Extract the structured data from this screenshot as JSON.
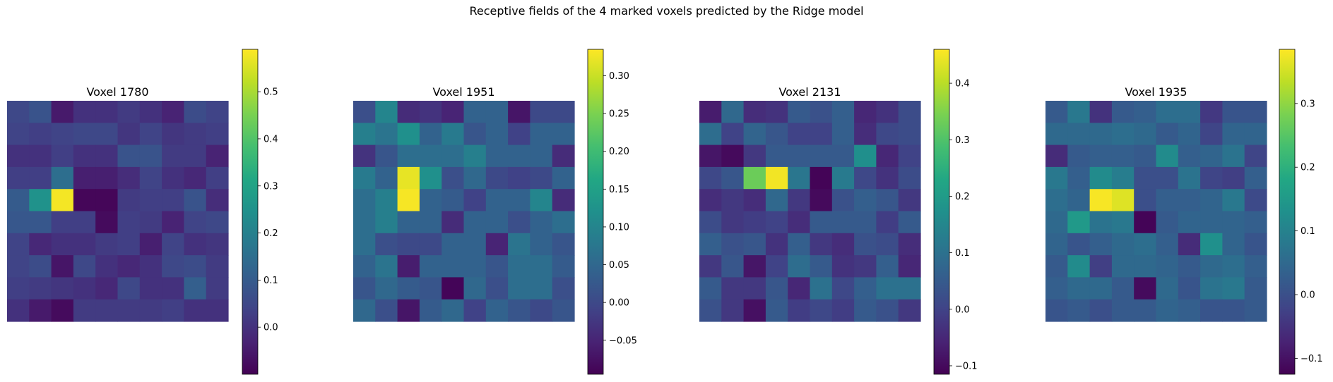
{
  "figure": {
    "suptitle": "Receptive fields of the 4 marked voxels predicted by the Ridge model"
  },
  "chart_data": [
    {
      "type": "heatmap",
      "title": "Voxel 1780",
      "grid": false,
      "colormap": "viridis",
      "vmin": -0.1,
      "vmax": 0.59,
      "colorbar_ticks": [
        0.0,
        0.1,
        0.2,
        0.3,
        0.4,
        0.5
      ],
      "colorbar_tick_labels": [
        "0.0",
        "0.1",
        "0.2",
        "0.3",
        "0.4",
        "0.5"
      ],
      "z": [
        [
          0.05,
          0.08,
          -0.05,
          0.0,
          0.0,
          0.02,
          0.0,
          -0.03,
          0.06,
          0.04
        ],
        [
          0.04,
          0.03,
          0.04,
          0.05,
          0.05,
          0.01,
          0.04,
          0.01,
          0.02,
          0.03
        ],
        [
          0.0,
          0.0,
          0.03,
          0.0,
          0.0,
          0.08,
          0.08,
          0.02,
          0.02,
          -0.03
        ],
        [
          0.03,
          0.03,
          0.15,
          -0.04,
          -0.04,
          -0.01,
          0.04,
          0.0,
          -0.02,
          0.03
        ],
        [
          0.1,
          0.25,
          0.58,
          -0.09,
          -0.09,
          0.02,
          0.03,
          0.03,
          0.08,
          -0.01
        ],
        [
          0.09,
          0.09,
          0.03,
          0.03,
          -0.08,
          0.03,
          0.02,
          -0.03,
          0.04,
          0.05
        ],
        [
          0.04,
          -0.02,
          0.0,
          0.0,
          0.02,
          0.03,
          -0.04,
          0.04,
          0.0,
          0.01
        ],
        [
          0.04,
          0.06,
          -0.06,
          0.05,
          0.0,
          -0.02,
          0.0,
          0.05,
          0.06,
          0.02
        ],
        [
          0.03,
          0.02,
          0.01,
          0.0,
          -0.02,
          0.05,
          0.0,
          0.0,
          0.11,
          0.02
        ],
        [
          0.0,
          -0.05,
          -0.08,
          0.02,
          0.02,
          0.02,
          0.02,
          0.03,
          0.0,
          0.0
        ]
      ]
    },
    {
      "type": "heatmap",
      "title": "Voxel 1951",
      "grid": false,
      "colormap": "viridis",
      "vmin": -0.095,
      "vmax": 0.335,
      "colorbar_ticks": [
        -0.05,
        0.0,
        0.05,
        0.1,
        0.15,
        0.2,
        0.25,
        0.3
      ],
      "colorbar_tick_labels": [
        "−0.05",
        "0.00",
        "0.05",
        "0.10",
        "0.15",
        "0.20",
        "0.25",
        "0.30"
      ],
      "z": [
        [
          0.01,
          0.1,
          -0.04,
          -0.03,
          -0.05,
          0.04,
          0.04,
          -0.07,
          0.0,
          0.0
        ],
        [
          0.09,
          0.07,
          0.12,
          0.04,
          0.08,
          0.02,
          0.04,
          -0.01,
          0.04,
          0.04
        ],
        [
          -0.03,
          0.02,
          0.06,
          0.06,
          0.06,
          0.09,
          0.04,
          0.04,
          0.04,
          -0.04
        ],
        [
          0.08,
          0.04,
          0.32,
          0.12,
          0.01,
          0.05,
          0.0,
          -0.01,
          0.0,
          0.04
        ],
        [
          0.06,
          0.09,
          0.33,
          0.04,
          0.03,
          -0.01,
          0.04,
          0.04,
          0.1,
          -0.04
        ],
        [
          0.06,
          0.09,
          0.04,
          0.04,
          -0.04,
          0.04,
          0.04,
          0.01,
          0.04,
          0.06
        ],
        [
          0.06,
          0.01,
          0.0,
          0.0,
          0.04,
          0.04,
          -0.05,
          0.07,
          0.04,
          0.02
        ],
        [
          0.04,
          0.07,
          -0.06,
          0.04,
          0.04,
          0.04,
          0.02,
          0.06,
          0.06,
          0.03
        ],
        [
          0.02,
          0.05,
          0.03,
          0.02,
          -0.09,
          0.05,
          0.01,
          0.06,
          0.06,
          0.01
        ],
        [
          0.05,
          0.01,
          -0.07,
          0.03,
          0.05,
          -0.01,
          0.04,
          0.02,
          0.0,
          0.02
        ]
      ]
    },
    {
      "type": "heatmap",
      "title": "Voxel 2131",
      "grid": false,
      "colormap": "viridis",
      "vmin": -0.115,
      "vmax": 0.46,
      "colorbar_ticks": [
        -0.1,
        0.0,
        0.1,
        0.2,
        0.3,
        0.4
      ],
      "colorbar_tick_labels": [
        "−0.1",
        "0.0",
        "0.1",
        "0.2",
        "0.3",
        "0.4"
      ],
      "z": [
        [
          -0.07,
          0.08,
          -0.04,
          -0.03,
          0.05,
          0.03,
          0.06,
          -0.05,
          -0.03,
          0.02
        ],
        [
          0.09,
          0.0,
          0.07,
          0.04,
          0.0,
          0.0,
          0.06,
          -0.04,
          0.01,
          0.02
        ],
        [
          -0.08,
          -0.1,
          -0.02,
          0.05,
          0.05,
          0.05,
          0.05,
          0.17,
          -0.05,
          0.0
        ],
        [
          0.01,
          0.04,
          0.33,
          0.45,
          0.11,
          -0.11,
          0.12,
          0.01,
          -0.03,
          0.02
        ],
        [
          -0.04,
          -0.02,
          -0.04,
          0.08,
          -0.02,
          -0.1,
          0.03,
          0.06,
          0.04,
          -0.02
        ],
        [
          0.02,
          -0.02,
          -0.01,
          0.0,
          -0.04,
          0.05,
          0.05,
          0.05,
          -0.01,
          0.05
        ],
        [
          0.06,
          0.03,
          0.04,
          -0.03,
          0.06,
          -0.02,
          -0.04,
          0.03,
          0.02,
          -0.04
        ],
        [
          -0.02,
          0.04,
          -0.08,
          0.0,
          0.09,
          0.05,
          -0.03,
          -0.02,
          0.06,
          -0.05
        ],
        [
          0.05,
          -0.02,
          -0.02,
          0.04,
          -0.05,
          0.1,
          0.01,
          0.06,
          0.1,
          0.1
        ],
        [
          0.03,
          -0.02,
          -0.09,
          0.05,
          -0.01,
          0.01,
          -0.01,
          0.05,
          0.03,
          -0.02
        ]
      ]
    },
    {
      "type": "heatmap",
      "title": "Voxel 1935",
      "grid": false,
      "colormap": "viridis",
      "vmin": -0.125,
      "vmax": 0.385,
      "colorbar_ticks": [
        -0.1,
        0.0,
        0.1,
        0.2,
        0.3
      ],
      "colorbar_tick_labels": [
        "−0.1",
        "0.0",
        "0.1",
        "0.2",
        "0.3"
      ],
      "z": [
        [
          0.02,
          0.08,
          -0.05,
          0.02,
          0.03,
          0.06,
          0.06,
          -0.04,
          0.01,
          0.01
        ],
        [
          0.05,
          0.05,
          0.05,
          0.06,
          0.05,
          0.02,
          0.04,
          -0.02,
          0.04,
          0.04
        ],
        [
          -0.06,
          0.02,
          0.03,
          0.03,
          0.02,
          0.12,
          0.03,
          0.04,
          0.07,
          -0.02
        ],
        [
          0.08,
          0.03,
          0.12,
          0.09,
          0.0,
          0.0,
          0.07,
          -0.02,
          -0.03,
          0.03
        ],
        [
          0.06,
          0.04,
          0.38,
          0.36,
          0.0,
          0.03,
          0.03,
          0.04,
          0.08,
          -0.01
        ],
        [
          0.05,
          0.15,
          0.07,
          0.08,
          -0.12,
          0.02,
          0.04,
          0.04,
          0.04,
          0.03
        ],
        [
          0.04,
          0.01,
          0.03,
          0.05,
          0.06,
          0.03,
          -0.06,
          0.13,
          0.04,
          0.01
        ],
        [
          0.02,
          0.12,
          -0.03,
          0.05,
          0.05,
          0.04,
          0.02,
          0.05,
          0.06,
          0.03
        ],
        [
          0.03,
          0.05,
          0.05,
          0.02,
          -0.11,
          0.05,
          0.01,
          0.07,
          0.08,
          0.02
        ],
        [
          0.01,
          0.02,
          0.0,
          0.02,
          0.02,
          0.04,
          0.03,
          0.01,
          0.01,
          0.02
        ]
      ]
    }
  ]
}
